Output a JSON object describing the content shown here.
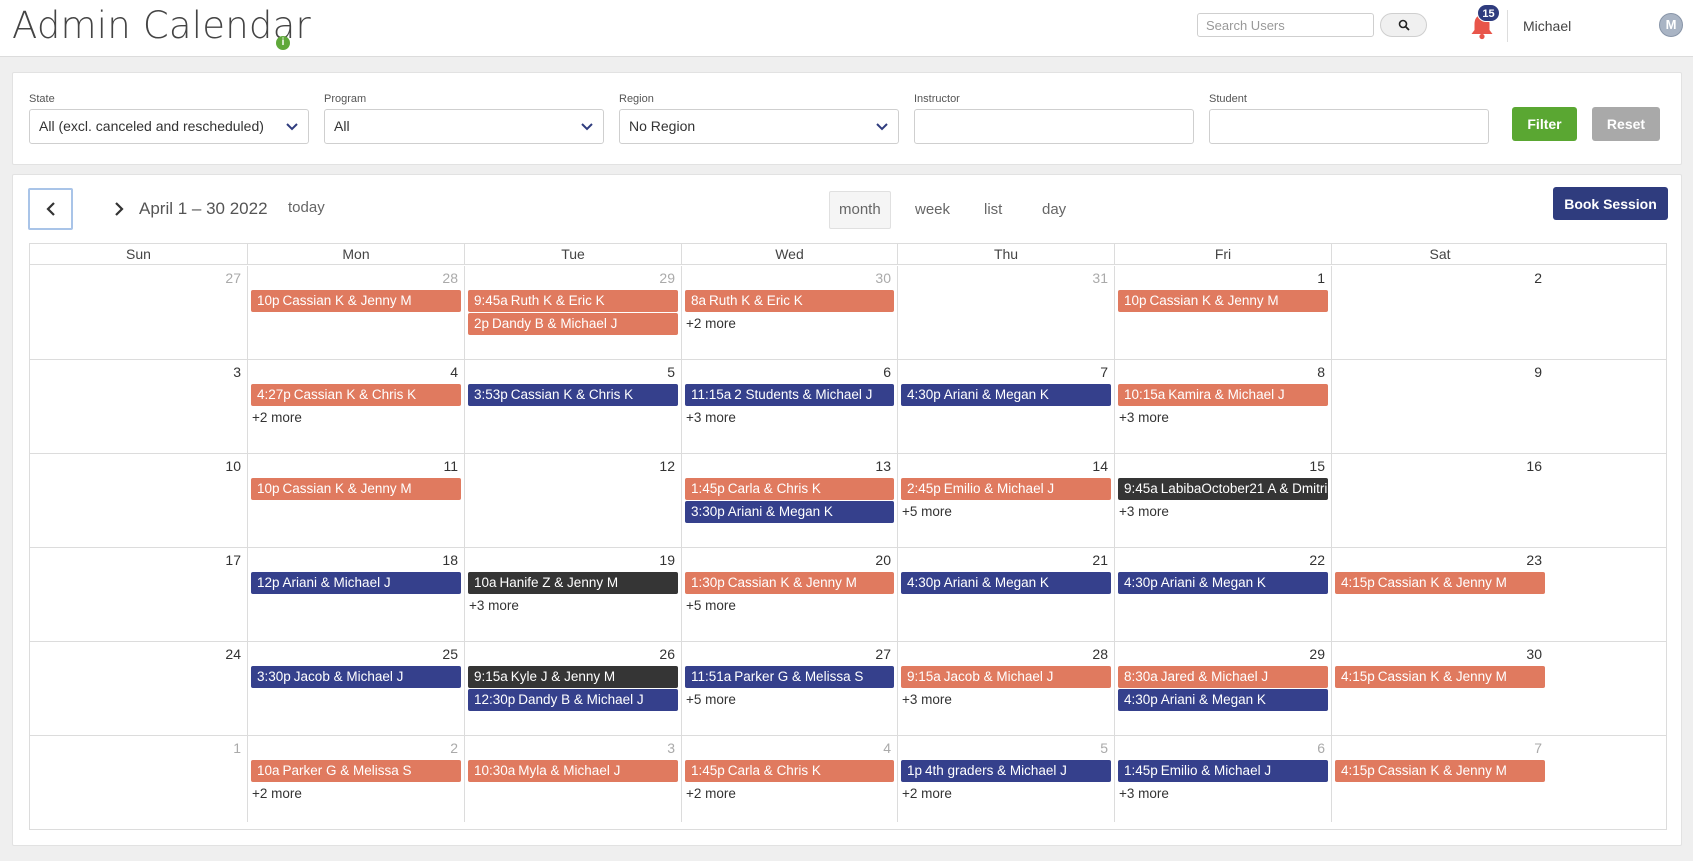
{
  "header": {
    "title": "Admin Calendar",
    "info_icon": "i",
    "search_placeholder": "Search Users",
    "notification_count": "15",
    "user_name": "Michael",
    "avatar_initial": "M"
  },
  "filters": {
    "state_label": "State",
    "state_value": "All (excl. canceled and rescheduled)",
    "program_label": "Program",
    "program_value": "All",
    "region_label": "Region",
    "region_value": "No Region",
    "instructor_label": "Instructor",
    "instructor_value": "",
    "student_label": "Student",
    "student_value": "",
    "filter_button": "Filter",
    "reset_button": "Reset"
  },
  "calendar": {
    "date_range": "April 1 – 30 2022",
    "today_label": "today",
    "views": [
      "month",
      "week",
      "list",
      "day"
    ],
    "book_button": "Book Session",
    "weekdays": [
      "Sun",
      "Mon",
      "Tue",
      "Wed",
      "Thu",
      "Fri",
      "Sat"
    ],
    "colors": {
      "orange": "#e07a5f",
      "blue": "#35408c",
      "dark": "#353535"
    },
    "weeks": [
      [
        {
          "d": "27",
          "o": true,
          "e": []
        },
        {
          "d": "28",
          "o": true,
          "e": [
            {
              "t": "10p",
              "n": "Cassian K & Jenny M",
              "c": "orange"
            }
          ]
        },
        {
          "d": "29",
          "o": true,
          "e": [
            {
              "t": "9:45a",
              "n": "Ruth K & Eric K",
              "c": "orange"
            },
            {
              "t": "2p",
              "n": "Dandy B & Michael J",
              "c": "orange"
            }
          ]
        },
        {
          "d": "30",
          "o": true,
          "e": [
            {
              "t": "8a",
              "n": "Ruth K & Eric K",
              "c": "orange"
            }
          ],
          "m": "+2 more"
        },
        {
          "d": "31",
          "o": true,
          "e": []
        },
        {
          "d": "1",
          "e": [
            {
              "t": "10p",
              "n": "Cassian K & Jenny M",
              "c": "orange"
            }
          ]
        },
        {
          "d": "2",
          "e": []
        }
      ],
      [
        {
          "d": "3",
          "e": []
        },
        {
          "d": "4",
          "e": [
            {
              "t": "4:27p",
              "n": "Cassian K & Chris K",
              "c": "orange"
            }
          ],
          "m": "+2 more"
        },
        {
          "d": "5",
          "e": [
            {
              "t": "3:53p",
              "n": "Cassian K & Chris K",
              "c": "blue"
            }
          ]
        },
        {
          "d": "6",
          "e": [
            {
              "t": "11:15a",
              "n": "2 Students & Michael J",
              "c": "blue"
            }
          ],
          "m": "+3 more"
        },
        {
          "d": "7",
          "e": [
            {
              "t": "4:30p",
              "n": "Ariani & Megan K",
              "c": "blue"
            }
          ]
        },
        {
          "d": "8",
          "e": [
            {
              "t": "10:15a",
              "n": "Kamira & Michael J",
              "c": "orange"
            }
          ],
          "m": "+3 more"
        },
        {
          "d": "9",
          "e": []
        }
      ],
      [
        {
          "d": "10",
          "e": []
        },
        {
          "d": "11",
          "e": [
            {
              "t": "10p",
              "n": "Cassian K & Jenny M",
              "c": "orange"
            }
          ]
        },
        {
          "d": "12",
          "e": []
        },
        {
          "d": "13",
          "e": [
            {
              "t": "1:45p",
              "n": "Carla & Chris K",
              "c": "orange"
            },
            {
              "t": "3:30p",
              "n": "Ariani & Megan K",
              "c": "blue"
            }
          ]
        },
        {
          "d": "14",
          "e": [
            {
              "t": "2:45p",
              "n": "Emilio & Michael J",
              "c": "orange"
            }
          ],
          "m": "+5 more"
        },
        {
          "d": "15",
          "e": [
            {
              "t": "9:45a",
              "n": "LabibaOctober21 A & Dmitri",
              "c": "dark"
            }
          ],
          "m": "+3 more"
        },
        {
          "d": "16",
          "e": []
        }
      ],
      [
        {
          "d": "17",
          "e": []
        },
        {
          "d": "18",
          "e": [
            {
              "t": "12p",
              "n": "Ariani & Michael J",
              "c": "blue"
            }
          ]
        },
        {
          "d": "19",
          "e": [
            {
              "t": "10a",
              "n": "Hanife Z & Jenny M",
              "c": "dark"
            }
          ],
          "m": "+3 more"
        },
        {
          "d": "20",
          "e": [
            {
              "t": "1:30p",
              "n": "Cassian K & Jenny M",
              "c": "orange"
            }
          ],
          "m": "+5 more"
        },
        {
          "d": "21",
          "e": [
            {
              "t": "4:30p",
              "n": "Ariani & Megan K",
              "c": "blue"
            }
          ]
        },
        {
          "d": "22",
          "e": [
            {
              "t": "4:30p",
              "n": "Ariani & Megan K",
              "c": "blue"
            }
          ]
        },
        {
          "d": "23",
          "e": [
            {
              "t": "4:15p",
              "n": "Cassian K & Jenny M",
              "c": "orange"
            }
          ]
        }
      ],
      [
        {
          "d": "24",
          "e": []
        },
        {
          "d": "25",
          "e": [
            {
              "t": "3:30p",
              "n": "Jacob & Michael J",
              "c": "blue"
            }
          ]
        },
        {
          "d": "26",
          "e": [
            {
              "t": "9:15a",
              "n": "Kyle J & Jenny M",
              "c": "dark"
            },
            {
              "t": "12:30p",
              "n": "Dandy B & Michael J",
              "c": "blue"
            }
          ]
        },
        {
          "d": "27",
          "e": [
            {
              "t": "11:51a",
              "n": "Parker G & Melissa S",
              "c": "blue"
            }
          ],
          "m": "+5 more"
        },
        {
          "d": "28",
          "e": [
            {
              "t": "9:15a",
              "n": "Jacob & Michael J",
              "c": "orange"
            }
          ],
          "m": "+3 more"
        },
        {
          "d": "29",
          "e": [
            {
              "t": "8:30a",
              "n": "Jared & Michael J",
              "c": "orange"
            },
            {
              "t": "4:30p",
              "n": "Ariani & Megan K",
              "c": "blue"
            }
          ]
        },
        {
          "d": "30",
          "e": [
            {
              "t": "4:15p",
              "n": "Cassian K & Jenny M",
              "c": "orange"
            }
          ]
        }
      ],
      [
        {
          "d": "1",
          "o": true,
          "e": []
        },
        {
          "d": "2",
          "o": true,
          "e": [
            {
              "t": "10a",
              "n": "Parker G & Melissa S",
              "c": "orange"
            }
          ],
          "m": "+2 more"
        },
        {
          "d": "3",
          "o": true,
          "e": [
            {
              "t": "10:30a",
              "n": "Myla & Michael J",
              "c": "orange"
            }
          ]
        },
        {
          "d": "4",
          "o": true,
          "e": [
            {
              "t": "1:45p",
              "n": "Carla & Chris K",
              "c": "orange"
            }
          ],
          "m": "+2 more"
        },
        {
          "d": "5",
          "o": true,
          "e": [
            {
              "t": "1p",
              "n": "4th graders & Michael J",
              "c": "blue"
            }
          ],
          "m": "+2 more"
        },
        {
          "d": "6",
          "o": true,
          "e": [
            {
              "t": "1:45p",
              "n": "Emilio & Michael J",
              "c": "blue"
            }
          ],
          "m": "+3 more"
        },
        {
          "d": "7",
          "o": true,
          "e": [
            {
              "t": "4:15p",
              "n": "Cassian K & Jenny M",
              "c": "orange"
            }
          ]
        }
      ]
    ]
  }
}
